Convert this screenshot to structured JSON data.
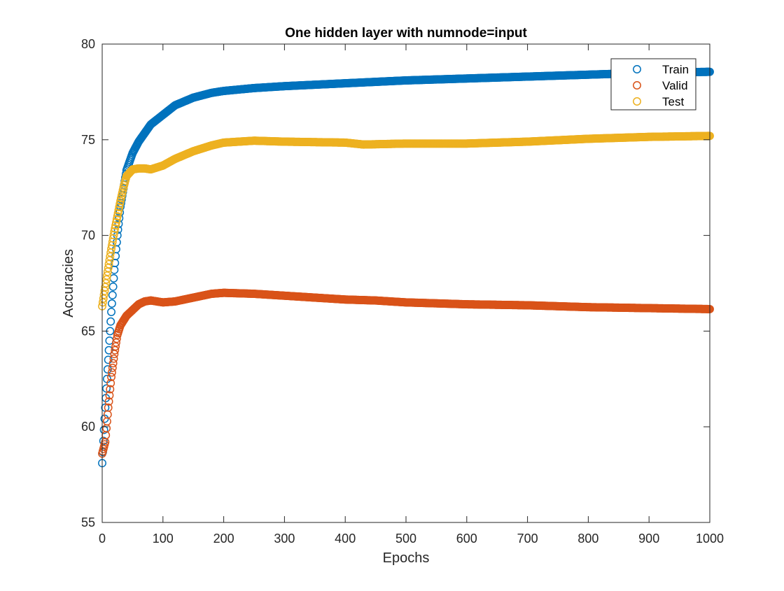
{
  "chart_data": {
    "type": "scatter",
    "title": "One hidden layer with numnode=input",
    "xlabel": "Epochs",
    "ylabel": "Accuracies",
    "xlim": [
      0,
      1000
    ],
    "ylim": [
      55,
      80
    ],
    "xticks": [
      0,
      100,
      200,
      300,
      400,
      500,
      600,
      700,
      800,
      900,
      1000
    ],
    "yticks": [
      55,
      60,
      65,
      70,
      75,
      80
    ],
    "grid": false,
    "legend_position": "top-right",
    "marker": "open-circle",
    "series": [
      {
        "name": "Train",
        "color": "#0072BD",
        "anchors": [
          [
            0,
            58.1
          ],
          [
            5,
            61
          ],
          [
            10,
            63.5
          ],
          [
            15,
            66
          ],
          [
            20,
            68.2
          ],
          [
            25,
            70
          ],
          [
            30,
            71.5
          ],
          [
            40,
            73.4
          ],
          [
            50,
            74.3
          ],
          [
            60,
            74.9
          ],
          [
            80,
            75.8
          ],
          [
            100,
            76.3
          ],
          [
            120,
            76.8
          ],
          [
            150,
            77.2
          ],
          [
            180,
            77.45
          ],
          [
            200,
            77.55
          ],
          [
            250,
            77.7
          ],
          [
            300,
            77.8
          ],
          [
            400,
            77.95
          ],
          [
            500,
            78.1
          ],
          [
            600,
            78.2
          ],
          [
            700,
            78.3
          ],
          [
            800,
            78.4
          ],
          [
            900,
            78.5
          ],
          [
            1000,
            78.55
          ]
        ]
      },
      {
        "name": "Valid",
        "color": "#D95319",
        "anchors": [
          [
            0,
            58.6
          ],
          [
            5,
            59.2
          ],
          [
            10,
            61
          ],
          [
            15,
            62.6
          ],
          [
            20,
            63.8
          ],
          [
            25,
            64.8
          ],
          [
            30,
            65.3
          ],
          [
            40,
            65.8
          ],
          [
            50,
            66.1
          ],
          [
            60,
            66.4
          ],
          [
            70,
            66.55
          ],
          [
            80,
            66.6
          ],
          [
            100,
            66.5
          ],
          [
            120,
            66.55
          ],
          [
            150,
            66.75
          ],
          [
            180,
            66.95
          ],
          [
            200,
            67
          ],
          [
            250,
            66.95
          ],
          [
            300,
            66.85
          ],
          [
            350,
            66.75
          ],
          [
            400,
            66.65
          ],
          [
            450,
            66.6
          ],
          [
            500,
            66.5
          ],
          [
            600,
            66.4
          ],
          [
            700,
            66.35
          ],
          [
            800,
            66.25
          ],
          [
            900,
            66.2
          ],
          [
            1000,
            66.15
          ]
        ]
      },
      {
        "name": "Test",
        "color": "#EDB120",
        "anchors": [
          [
            0,
            66.3
          ],
          [
            5,
            67.3
          ],
          [
            10,
            68.3
          ],
          [
            15,
            69.3
          ],
          [
            20,
            70.2
          ],
          [
            25,
            71
          ],
          [
            30,
            71.8
          ],
          [
            35,
            72.5
          ],
          [
            40,
            73.1
          ],
          [
            50,
            73.45
          ],
          [
            60,
            73.5
          ],
          [
            70,
            73.5
          ],
          [
            80,
            73.45
          ],
          [
            100,
            73.65
          ],
          [
            120,
            74
          ],
          [
            150,
            74.4
          ],
          [
            180,
            74.7
          ],
          [
            200,
            74.85
          ],
          [
            250,
            74.95
          ],
          [
            300,
            74.9
          ],
          [
            400,
            74.85
          ],
          [
            430,
            74.75
          ],
          [
            500,
            74.8
          ],
          [
            600,
            74.8
          ],
          [
            700,
            74.9
          ],
          [
            800,
            75.05
          ],
          [
            900,
            75.15
          ],
          [
            1000,
            75.2
          ]
        ]
      }
    ]
  }
}
